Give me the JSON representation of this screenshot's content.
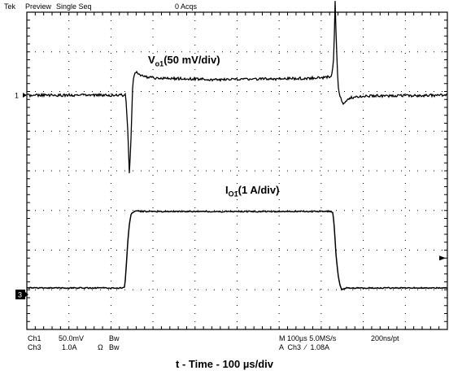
{
  "status_bar": {
    "brand": "Tek",
    "mode": "Preview",
    "acq_mode": "Single Seq",
    "acq_count": "0 Acqs"
  },
  "trace_labels": {
    "voltage": {
      "main": "V",
      "sub": "o1",
      "rest": "(50 mV/div)"
    },
    "current": {
      "main": "I",
      "sub": "O1",
      "rest": "(1 A/div)"
    }
  },
  "markers": {
    "ch1": "1",
    "ch3": "3"
  },
  "readout": {
    "ch1_name": "Ch1",
    "ch1_scale": "50.0mV",
    "ch1_bw": "Bw",
    "ch3_name": "Ch3",
    "ch3_scale": "1.0A",
    "ch3_ohm": "Ω",
    "ch3_bw": "Bw",
    "timebase": "M 100µs 5.0MS/s",
    "trigger": "A  Ch3  ⁄  1.08A",
    "record": "200ns/pt"
  },
  "xlabel": "t - Time - 100 µs/div",
  "colors": {
    "trace": "#000000",
    "grid": "#000000",
    "marker_bg": "#000000",
    "marker_fg": "#ffffff"
  },
  "chart_data": {
    "type": "line",
    "xlabel": "t - Time - 100 µs/div",
    "x_unit": "µs",
    "xlim": [
      0,
      1000
    ],
    "divisions": {
      "x": 10,
      "y": 8
    },
    "grid": true,
    "series": [
      {
        "name": "V_o1",
        "scale": "50 mV/div",
        "y_unit": "mV",
        "x": [
          0,
          220,
          235,
          240,
          244,
          248,
          252,
          258,
          266,
          275,
          300,
          450,
          600,
          700,
          725,
          730,
          733,
          736,
          740,
          746,
          752,
          758,
          770,
          800,
          1000
        ],
        "y": [
          0,
          0,
          0,
          -40,
          -95,
          -45,
          15,
          28,
          24,
          22,
          20,
          18,
          19,
          20,
          22,
          45,
          110,
          60,
          10,
          -3,
          -12,
          -8,
          -3,
          -1,
          0
        ]
      },
      {
        "name": "I_O1",
        "scale": "1 A/div",
        "y_unit": "A",
        "x": [
          0,
          230,
          233,
          236,
          240,
          244,
          248,
          252,
          256,
          262,
          270,
          725,
          728,
          731,
          735,
          740,
          744,
          748,
          752,
          760,
          1000
        ],
        "y": [
          0,
          0,
          0.05,
          0.5,
          1.2,
          1.7,
          1.92,
          1.98,
          2.0,
          2.02,
          2.0,
          2.0,
          1.95,
          1.6,
          0.9,
          0.35,
          0.1,
          -0.05,
          -0.03,
          0,
          0
        ]
      }
    ]
  }
}
